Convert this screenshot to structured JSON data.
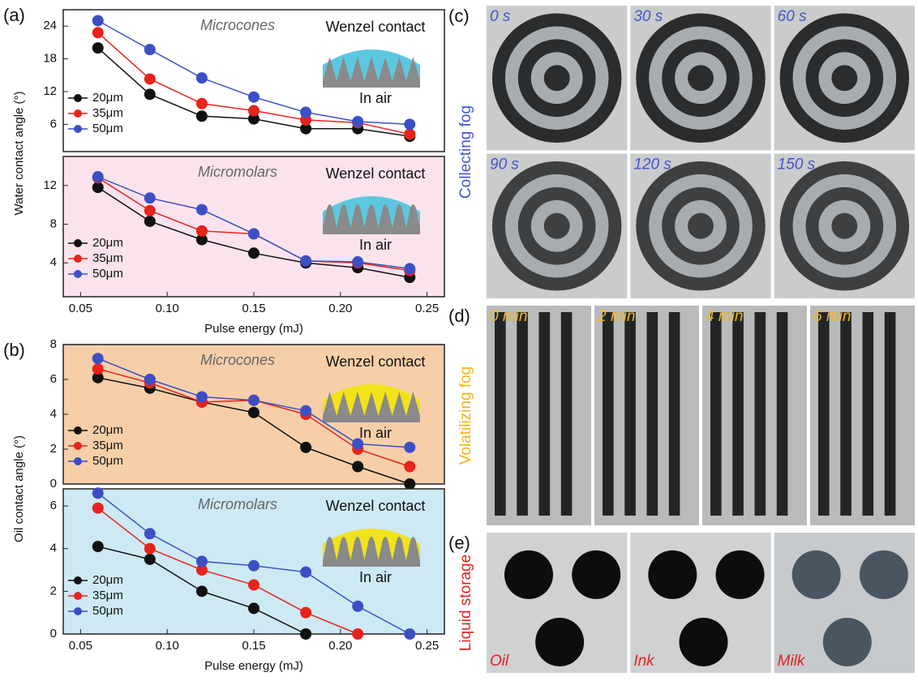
{
  "chart_data": [
    {
      "type": "line",
      "panel_label": "(a)",
      "ylabel": "Water contact angle (°)",
      "title": "Microcones",
      "annotations": [
        "Wenzel contact",
        "In air"
      ],
      "background": "#ffffff",
      "x": [
        0.06,
        0.09,
        0.12,
        0.15,
        0.18,
        0.21,
        0.24
      ],
      "xlim": [
        0.04,
        0.26
      ],
      "ylim": [
        1,
        27
      ],
      "yticks": [
        6,
        12,
        18,
        24
      ],
      "series": [
        {
          "name": "20μm",
          "color": "#111111",
          "values": [
            20,
            11.5,
            7.5,
            7,
            5.2,
            5.2,
            3.8
          ]
        },
        {
          "name": "35μm",
          "color": "#e8231c",
          "values": [
            22.8,
            14.3,
            9.8,
            8.5,
            6.8,
            6.3,
            4.2
          ]
        },
        {
          "name": "50μm",
          "color": "#3c4fc4",
          "values": [
            25,
            19.7,
            14.5,
            11,
            8.2,
            6.5,
            6
          ]
        }
      ]
    },
    {
      "type": "line",
      "title": "Micromolars",
      "xlabel": "Pulse energy (mJ)",
      "annotations": [
        "Wenzel contact",
        "In air"
      ],
      "background": "#fbe3ee",
      "x": [
        0.06,
        0.09,
        0.12,
        0.15,
        0.18,
        0.21,
        0.24
      ],
      "xlim": [
        0.04,
        0.26
      ],
      "xticks": [
        0.05,
        {
          "value": 0.1,
          "label": "0.10"
        },
        0.15,
        {
          "value": 0.2,
          "label": "0.20"
        },
        0.25
      ],
      "ylim": [
        0.5,
        15
      ],
      "yticks": [
        4,
        8,
        12
      ],
      "series": [
        {
          "name": "20μm",
          "color": "#111111",
          "values": [
            11.8,
            8.3,
            6.4,
            5,
            4,
            3.5,
            2.5
          ]
        },
        {
          "name": "35μm",
          "color": "#e8231c",
          "values": [
            12.8,
            9.4,
            7.3,
            7,
            4.2,
            4,
            3.2
          ]
        },
        {
          "name": "50μm",
          "color": "#3c4fc4",
          "values": [
            12.9,
            10.7,
            9.5,
            7,
            4.2,
            4.1,
            3.4
          ]
        }
      ]
    },
    {
      "type": "line",
      "panel_label": "(b)",
      "ylabel": "Oil contact angle (°)",
      "title": "Microcones",
      "annotations": [
        "Wenzel contact",
        "In air"
      ],
      "background": "#f6cfa9",
      "x": [
        0.06,
        0.09,
        0.12,
        0.15,
        0.18,
        0.21,
        0.24
      ],
      "xlim": [
        0.04,
        0.26
      ],
      "ylim": [
        0,
        8
      ],
      "yticks": [
        0,
        2,
        4,
        6,
        8
      ],
      "series": [
        {
          "name": "20μm",
          "color": "#111111",
          "values": [
            6.1,
            5.5,
            4.7,
            4.1,
            2.1,
            1,
            0
          ]
        },
        {
          "name": "35μm",
          "color": "#e8231c",
          "values": [
            6.6,
            5.8,
            4.7,
            4.8,
            4,
            2,
            1
          ]
        },
        {
          "name": "50μm",
          "color": "#3c4fc4",
          "values": [
            7.2,
            6,
            5,
            4.8,
            4.2,
            2.3,
            2.1
          ]
        }
      ]
    },
    {
      "type": "line",
      "title": "Micromolars",
      "xlabel": "Pulse energy (mJ)",
      "annotations": [
        "Wenzel contact",
        "In air"
      ],
      "background": "#cdeaf4",
      "x": [
        0.06,
        0.09,
        0.12,
        0.15,
        0.18,
        0.21,
        0.24
      ],
      "xlim": [
        0.04,
        0.26
      ],
      "xticks": [
        0.05,
        {
          "value": 0.1,
          "label": "0.10"
        },
        0.15,
        {
          "value": 0.2,
          "label": "0.20"
        },
        0.25
      ],
      "ylim": [
        0,
        6.8
      ],
      "yticks": [
        0,
        2,
        4,
        6
      ],
      "series": [
        {
          "name": "20μm",
          "color": "#111111",
          "values": [
            4.1,
            3.5,
            2,
            1.2,
            0,
            null,
            null
          ]
        },
        {
          "name": "35μm",
          "color": "#e8231c",
          "values": [
            5.9,
            4,
            3,
            2.3,
            1,
            0,
            null
          ]
        },
        {
          "name": "50μm",
          "color": "#3c4fc4",
          "values": [
            6.6,
            4.7,
            3.4,
            3.2,
            2.9,
            1.3,
            0
          ]
        }
      ]
    }
  ],
  "panels": [
    {
      "label": "(c)",
      "side": "Collecting fog",
      "color": "#4455cc",
      "frames": [
        "0 s",
        "30 s",
        "60 s",
        "90 s",
        "120 s",
        "150 s"
      ]
    },
    {
      "label": "(d)",
      "side": "Volatilizing fog",
      "color": "#f1b518",
      "frames": [
        "0 min",
        "2 min",
        "4 min",
        "6 min"
      ]
    },
    {
      "label": "(e)",
      "side": "Liquid storage",
      "color": "#e22222",
      "frames": [
        "Oil",
        "Ink",
        "Milk"
      ]
    }
  ]
}
